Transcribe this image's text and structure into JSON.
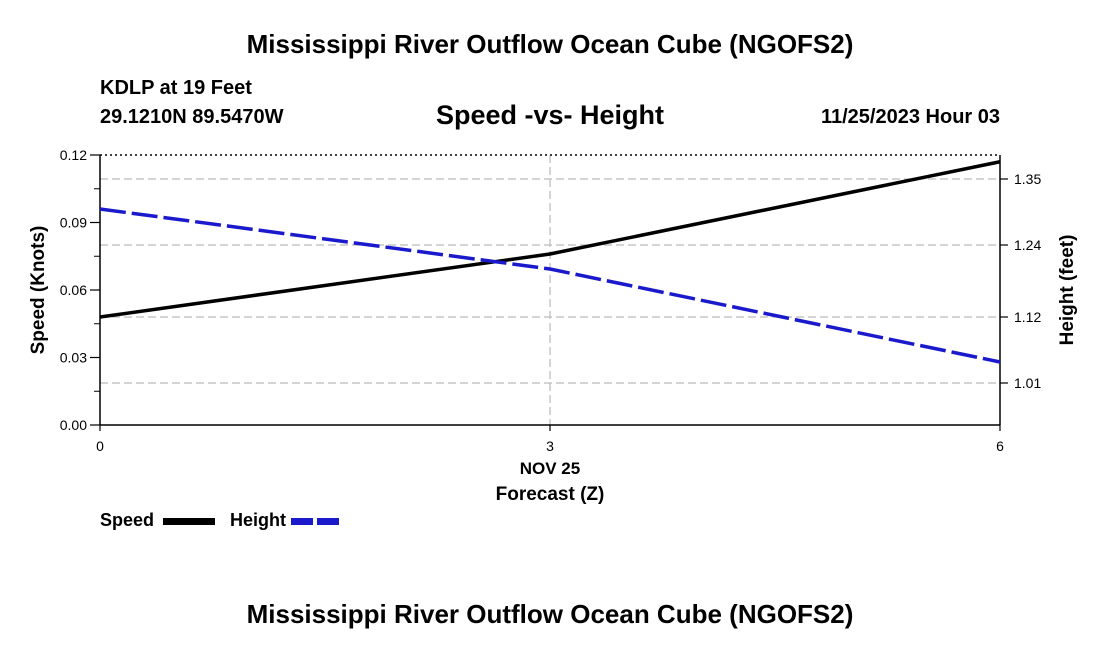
{
  "header": {
    "title": "Mississippi River Outflow Ocean Cube (NGOFS2)",
    "station": "KDLP at 19 Feet",
    "coords": "29.1210N  89.5470W",
    "date": "11/25/2023 Hour 03"
  },
  "footer": {
    "title": "Mississippi River Outflow Ocean Cube (NGOFS2)"
  },
  "chart_data": {
    "type": "line",
    "title": "Speed -vs- Height",
    "xlabel": "Forecast (Z)",
    "x_sublabel": "NOV 25",
    "ylabel_left": "Speed (Knots)",
    "ylabel_right": "Height (feet)",
    "xlim": [
      0,
      6
    ],
    "ylim_left": [
      0,
      0.12
    ],
    "ylim_right": [
      0.94,
      1.39
    ],
    "x_ticks": [
      {
        "value": 0,
        "label": "0"
      },
      {
        "value": 3,
        "label": "3"
      },
      {
        "value": 6,
        "label": "6"
      }
    ],
    "y_left_ticks": [
      {
        "value": 0.0,
        "label": "0.00"
      },
      {
        "value": 0.03,
        "label": "0.03"
      },
      {
        "value": 0.06,
        "label": "0.06"
      },
      {
        "value": 0.09,
        "label": "0.09"
      },
      {
        "value": 0.12,
        "label": "0.12"
      }
    ],
    "y_right_ticks": [
      {
        "value": 1.01,
        "label": "1.01"
      },
      {
        "value": 1.12,
        "label": "1.12"
      },
      {
        "value": 1.24,
        "label": "1.24"
      },
      {
        "value": 1.35,
        "label": "1.35"
      }
    ],
    "series": [
      {
        "name": "Speed",
        "axis": "left",
        "color": "#000000",
        "style": "solid",
        "x": [
          0,
          3,
          6
        ],
        "values": [
          0.048,
          0.076,
          0.117
        ]
      },
      {
        "name": "Height",
        "axis": "right",
        "color": "#1a1acc",
        "style": "dashed",
        "x": [
          0,
          3,
          6
        ],
        "values": [
          1.3,
          1.2,
          1.045
        ]
      }
    ],
    "legend": "bottom-left"
  }
}
